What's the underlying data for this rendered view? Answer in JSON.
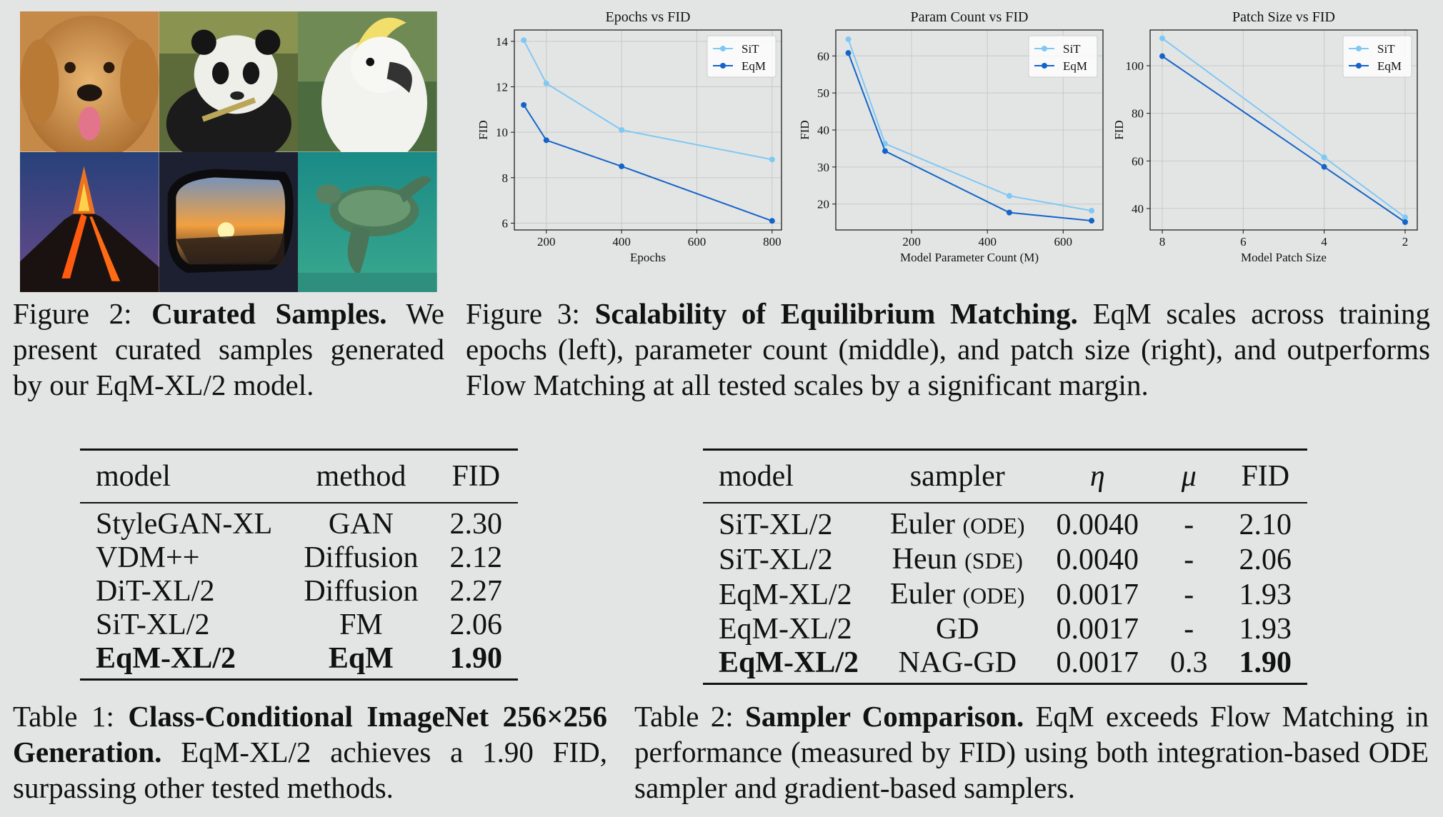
{
  "figure2": {
    "tiles": [
      {
        "subject": "golden retriever"
      },
      {
        "subject": "panda eating bamboo"
      },
      {
        "subject": "white cockatoo"
      },
      {
        "subject": "erupting volcano"
      },
      {
        "subject": "car side mirror at sunset"
      },
      {
        "subject": "sea turtle underwater"
      }
    ],
    "caption_label": "Figure 2:",
    "caption_title": "Curated Samples.",
    "caption_body": " We present curated samples generated by our EqM-XL/2 model."
  },
  "figure3": {
    "caption_label": "Figure 3:",
    "caption_title": "Scalability of Equilibrium Matching.",
    "caption_body": " EqM scales across training epochs (left), parameter count (middle), and patch size (right), and outperforms Flow Matching at all tested scales by a significant margin."
  },
  "colors": {
    "sit": "#80c8f4",
    "eqm": "#1464c8",
    "grid": "#c8cac9"
  },
  "chart_data": [
    {
      "type": "line",
      "title": "Epochs vs FID",
      "xlabel": "Epochs",
      "ylabel": "FID",
      "xlim": [
        115,
        825
      ],
      "ylim": [
        5.7,
        14.5
      ],
      "xticks": [
        200,
        400,
        600,
        800
      ],
      "yticks": [
        6,
        8,
        10,
        12,
        14
      ],
      "x_reversed": false,
      "legend": "top-right",
      "grid": true,
      "series": [
        {
          "name": "SiT",
          "color_key": "sit",
          "x": [
            140,
            200,
            400,
            800
          ],
          "y": [
            14.05,
            12.15,
            10.1,
            8.8
          ]
        },
        {
          "name": "EqM",
          "color_key": "eqm",
          "x": [
            140,
            200,
            400,
            800
          ],
          "y": [
            11.2,
            9.65,
            8.5,
            6.1
          ]
        }
      ]
    },
    {
      "type": "line",
      "title": "Param Count vs FID",
      "xlabel": "Model Parameter Count (M)",
      "ylabel": "FID",
      "xlim": [
        0,
        705
      ],
      "ylim": [
        13,
        67
      ],
      "xticks": [
        200,
        400,
        600
      ],
      "yticks": [
        20,
        30,
        40,
        50,
        60
      ],
      "x_reversed": false,
      "legend": "top-right",
      "grid": true,
      "series": [
        {
          "name": "SiT",
          "color_key": "sit",
          "x": [
            33,
            130,
            458,
            675
          ],
          "y": [
            64.5,
            36.3,
            22.2,
            18.2
          ]
        },
        {
          "name": "EqM",
          "color_key": "eqm",
          "x": [
            33,
            130,
            458,
            675
          ],
          "y": [
            60.8,
            34.3,
            17.7,
            15.5
          ]
        }
      ]
    },
    {
      "type": "line",
      "title": "Patch Size vs FID",
      "xlabel": "Model Patch Size",
      "ylabel": "FID",
      "xlim": [
        8.3,
        1.7
      ],
      "ylim": [
        31,
        115
      ],
      "xticks": [
        8,
        6,
        4,
        2
      ],
      "yticks": [
        40,
        60,
        80,
        100
      ],
      "x_reversed": true,
      "legend": "top-right",
      "grid": true,
      "series": [
        {
          "name": "SiT",
          "color_key": "sit",
          "x": [
            8,
            4,
            2
          ],
          "y": [
            111.5,
            61.5,
            36.3
          ]
        },
        {
          "name": "EqM",
          "color_key": "eqm",
          "x": [
            8,
            4,
            2
          ],
          "y": [
            104,
            57.5,
            34.3
          ]
        }
      ]
    }
  ],
  "table1": {
    "headers": [
      "model",
      "method",
      "FID"
    ],
    "rows": [
      [
        "StyleGAN-XL",
        "GAN",
        "2.30"
      ],
      [
        "VDM++",
        "Diffusion",
        "2.12"
      ],
      [
        "DiT-XL/2",
        "Diffusion",
        "2.27"
      ],
      [
        "SiT-XL/2",
        "FM",
        "2.06"
      ],
      [
        "EqM-XL/2",
        "EqM",
        "1.90"
      ]
    ],
    "bold_row": 4,
    "caption_label": "Table 1:",
    "caption_title": "Class-Conditional ImageNet 256×256 Generation.",
    "caption_body": " EqM-XL/2 achieves a 1.90 FID, surpassing other tested methods."
  },
  "table2": {
    "headers": [
      "model",
      "sampler",
      "η",
      "μ",
      "FID"
    ],
    "rows": [
      [
        "SiT-XL/2",
        "Euler",
        "(ODE)",
        "0.0040",
        "-",
        "2.10"
      ],
      [
        "SiT-XL/2",
        "Heun",
        "(SDE)",
        "0.0040",
        "-",
        "2.06"
      ],
      [
        "EqM-XL/2",
        "Euler",
        "(ODE)",
        "0.0017",
        "-",
        "1.93"
      ],
      [
        "EqM-XL/2",
        "GD",
        "",
        "0.0017",
        "-",
        "1.93"
      ],
      [
        "EqM-XL/2",
        "NAG-GD",
        "",
        "0.0017",
        "0.3",
        "1.90"
      ]
    ],
    "bold_row": 4,
    "caption_label": "Table 2:",
    "caption_title": "Sampler Comparison.",
    "caption_body": " EqM exceeds Flow Matching in performance (measured by FID) using both integration-based ODE sampler and gradient-based samplers."
  }
}
